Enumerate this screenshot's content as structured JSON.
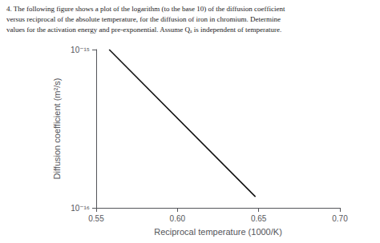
{
  "chart_data": {
    "type": "line",
    "annotations": [
      "4. The following figure shows a plot of the logarithm (to the base 10) of the diffusion coefficient",
      "versus reciprocal of the absolute temperature, for the diffusion of iron in chromium. Determine",
      "values for the activation energy and pre-exponential. Assume Qₐ is independent of temperature."
    ],
    "x_label": "Reciprocal temperature (1000/K)",
    "y_label": "Diffusion coefficient (m²/s)",
    "x": [
      0.558,
      0.648
    ],
    "values": [
      1e-15,
      1.1748975549395295e-16
    ],
    "color": "#111111",
    "log": "y",
    "xlim": [
      0.55,
      0.7
    ],
    "xticks": [
      0.55,
      {
        "value": 0.6,
        "label": "0.60"
      },
      0.65,
      {
        "value": 0.7,
        "label": "0.70"
      }
    ],
    "ylim": [
      1e-16,
      1e-15
    ],
    "yticks": [
      {
        "value": 1e-16,
        "label": "10⁻¹⁶"
      },
      {
        "value": 1e-15,
        "label": "10⁻¹⁵"
      }
    ],
    "grid": false
  }
}
